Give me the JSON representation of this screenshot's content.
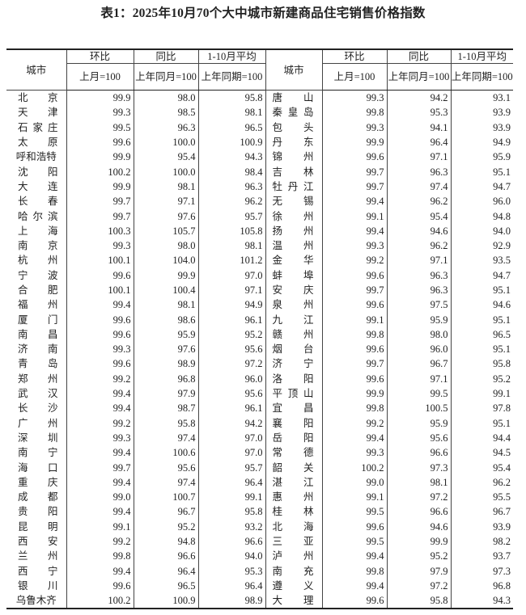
{
  "title": "表1：2025年10月70个大中城市新建商品住宅销售价格指数",
  "header": {
    "city": "城市",
    "mom": "环比",
    "yoy": "同比",
    "avg": "1-10月平均",
    "mom_base": "上月=100",
    "yoy_base": "上年同月=100",
    "avg_base": "上年同期=100"
  },
  "rows": [
    {
      "left": [
        "北京",
        "99.9",
        "98.0",
        "95.8"
      ],
      "right": [
        "唐山",
        "99.3",
        "94.2",
        "93.1"
      ]
    },
    {
      "left": [
        "天津",
        "99.3",
        "98.5",
        "98.1"
      ],
      "right": [
        "秦皇岛",
        "99.8",
        "95.3",
        "93.9"
      ]
    },
    {
      "left": [
        "石家庄",
        "99.5",
        "96.3",
        "96.5"
      ],
      "right": [
        "包头",
        "99.3",
        "94.1",
        "93.9"
      ]
    },
    {
      "left": [
        "太原",
        "99.6",
        "100.0",
        "100.9"
      ],
      "right": [
        "丹东",
        "99.9",
        "96.4",
        "94.9"
      ]
    },
    {
      "left": [
        "呼和浩特",
        "99.9",
        "95.4",
        "94.3"
      ],
      "right": [
        "锦州",
        "99.6",
        "97.1",
        "95.9"
      ]
    },
    {
      "left": [
        "沈阳",
        "100.2",
        "100.0",
        "98.4"
      ],
      "right": [
        "吉林",
        "99.7",
        "96.3",
        "95.1"
      ]
    },
    {
      "left": [
        "大连",
        "99.9",
        "98.1",
        "96.3"
      ],
      "right": [
        "牡丹江",
        "99.7",
        "97.4",
        "94.7"
      ]
    },
    {
      "left": [
        "长春",
        "99.7",
        "97.1",
        "96.2"
      ],
      "right": [
        "无锡",
        "99.4",
        "96.2",
        "96.0"
      ]
    },
    {
      "left": [
        "哈尔滨",
        "99.7",
        "97.6",
        "95.7"
      ],
      "right": [
        "徐州",
        "99.1",
        "95.4",
        "94.8"
      ]
    },
    {
      "left": [
        "上海",
        "100.3",
        "105.7",
        "105.8"
      ],
      "right": [
        "扬州",
        "99.4",
        "94.6",
        "94.0"
      ]
    },
    {
      "left": [
        "南京",
        "99.3",
        "98.0",
        "98.1"
      ],
      "right": [
        "温州",
        "99.3",
        "96.2",
        "92.9"
      ]
    },
    {
      "left": [
        "杭州",
        "100.1",
        "104.0",
        "101.2"
      ],
      "right": [
        "金华",
        "99.2",
        "97.1",
        "93.5"
      ]
    },
    {
      "left": [
        "宁波",
        "99.6",
        "99.9",
        "97.0"
      ],
      "right": [
        "蚌埠",
        "99.6",
        "96.3",
        "94.7"
      ]
    },
    {
      "left": [
        "合肥",
        "100.1",
        "100.4",
        "97.1"
      ],
      "right": [
        "安庆",
        "99.7",
        "96.3",
        "95.1"
      ]
    },
    {
      "left": [
        "福州",
        "99.4",
        "98.1",
        "94.9"
      ],
      "right": [
        "泉州",
        "99.6",
        "97.5",
        "94.6"
      ]
    },
    {
      "left": [
        "厦门",
        "99.6",
        "98.6",
        "96.1"
      ],
      "right": [
        "九江",
        "99.1",
        "95.9",
        "95.1"
      ]
    },
    {
      "left": [
        "南昌",
        "99.6",
        "95.9",
        "95.2"
      ],
      "right": [
        "赣州",
        "99.8",
        "98.0",
        "96.5"
      ]
    },
    {
      "left": [
        "济南",
        "99.3",
        "97.6",
        "95.6"
      ],
      "right": [
        "烟台",
        "99.6",
        "96.0",
        "95.1"
      ]
    },
    {
      "left": [
        "青岛",
        "99.6",
        "98.9",
        "97.2"
      ],
      "right": [
        "济宁",
        "99.7",
        "96.7",
        "95.8"
      ]
    },
    {
      "left": [
        "郑州",
        "99.2",
        "96.8",
        "96.0"
      ],
      "right": [
        "洛阳",
        "99.6",
        "97.1",
        "95.2"
      ]
    },
    {
      "left": [
        "武汉",
        "99.4",
        "97.9",
        "95.6"
      ],
      "right": [
        "平顶山",
        "99.9",
        "99.5",
        "99.1"
      ]
    },
    {
      "left": [
        "长沙",
        "99.4",
        "98.7",
        "96.1"
      ],
      "right": [
        "宜昌",
        "99.8",
        "100.5",
        "97.8"
      ]
    },
    {
      "left": [
        "广州",
        "99.2",
        "95.8",
        "94.2"
      ],
      "right": [
        "襄阳",
        "99.2",
        "95.9",
        "95.1"
      ]
    },
    {
      "left": [
        "深圳",
        "99.3",
        "97.4",
        "97.0"
      ],
      "right": [
        "岳阳",
        "99.4",
        "95.6",
        "94.4"
      ]
    },
    {
      "left": [
        "南宁",
        "99.4",
        "100.6",
        "97.0"
      ],
      "right": [
        "常德",
        "99.3",
        "96.6",
        "94.5"
      ]
    },
    {
      "left": [
        "海口",
        "99.7",
        "95.6",
        "95.7"
      ],
      "right": [
        "韶关",
        "100.2",
        "97.3",
        "95.4"
      ]
    },
    {
      "left": [
        "重庆",
        "99.4",
        "97.4",
        "96.4"
      ],
      "right": [
        "湛江",
        "99.0",
        "98.1",
        "96.2"
      ]
    },
    {
      "left": [
        "成都",
        "99.0",
        "100.7",
        "99.1"
      ],
      "right": [
        "惠州",
        "99.1",
        "97.2",
        "95.5"
      ]
    },
    {
      "left": [
        "贵阳",
        "99.4",
        "96.7",
        "95.8"
      ],
      "right": [
        "桂林",
        "99.5",
        "96.6",
        "96.7"
      ]
    },
    {
      "left": [
        "昆明",
        "99.1",
        "95.2",
        "93.2"
      ],
      "right": [
        "北海",
        "99.6",
        "94.6",
        "93.9"
      ]
    },
    {
      "left": [
        "西安",
        "99.2",
        "94.8",
        "96.6"
      ],
      "right": [
        "三亚",
        "99.5",
        "99.9",
        "98.2"
      ]
    },
    {
      "left": [
        "兰州",
        "99.8",
        "96.6",
        "94.0"
      ],
      "right": [
        "泸州",
        "99.4",
        "95.2",
        "93.7"
      ]
    },
    {
      "left": [
        "西宁",
        "99.4",
        "96.4",
        "95.3"
      ],
      "right": [
        "南充",
        "99.8",
        "97.9",
        "97.3"
      ]
    },
    {
      "left": [
        "银川",
        "99.6",
        "96.5",
        "96.4"
      ],
      "right": [
        "遵义",
        "99.4",
        "97.2",
        "96.8"
      ]
    },
    {
      "left": [
        "乌鲁木齐",
        "100.2",
        "100.9",
        "98.9"
      ],
      "right": [
        "大理",
        "99.6",
        "95.8",
        "94.3"
      ]
    }
  ]
}
